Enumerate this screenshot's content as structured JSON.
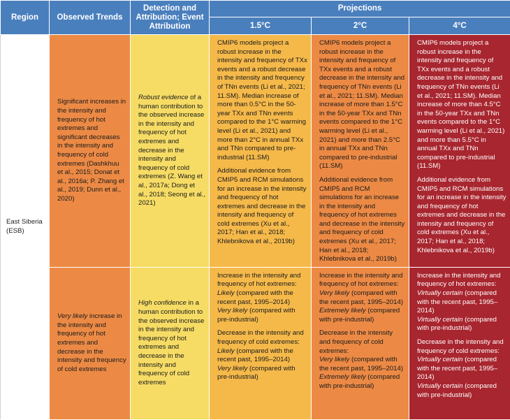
{
  "headers": {
    "region": "Region",
    "observed": "Observed Trends",
    "detection": "Detection and Attribution; Event Attribution",
    "projections": "Projections",
    "p15": "1.5°C",
    "p20": "2°C",
    "p40": "4°C"
  },
  "region": "East Siberia (ESB)",
  "hot_row": {
    "observed": "Significant increases in the intensity and frequency of hot extremes and significant decreases in the intensity and frequency of cold extremes (Dashkhuu et al., 2015; Donat et al., 2016a; P. Zhang et al., 2019; Dunn et al., 2020)",
    "detection_em": "Robust evidence",
    "detection_rest": " of a human contribution to the observed increase in the intensity and frequency of hot extremes and decrease in the intensity and frequency of cold extremes (Z. Wang et al., 2017a; Dong et al., 2018; Seong et al., 2021)",
    "p15_a": "CMIP6 models project a robust increase in the intensity and frequency of TXx events and a robust decrease in the intensity and frequency of TNn events (Li et al., 2021; 11.SM). Median increase of more than 0.5°C in the 50-year TXx and TNn events compared to the 1°C warming level (Li et al., 2021) and more than 2°C in annual TXx and TNn compared to pre-industrial (11.SM)",
    "p15_b": "Additional evidence from CMIP5 and RCM simulations for an increase in the intensity and frequency of hot extremes and decrease in the intensity and frequency of cold extremes (Xu et al., 2017; Han et al., 2018; Khlebnikova et al., 2019b)",
    "p20_a": "CMIP6 models project a robust increase in the intensity and frequency of TXx events and a robust decrease in the intensity and frequency of TNn events (Li et al., 2021; 11.SM). Median increase of more than 1.5°C in the 50-year TXx and TNn events compared to the 1°C warming level (Li et al., 2021) and more than 2.5°C in annual TXx and TNn compared to pre-industrial (11.SM)",
    "p20_b": "Additional evidence from CMIP5 and RCM simulations for an increase in the intensity and frequency of hot extremes and decrease in the intensity and frequency of cold extremes (Xu et al., 2017; Han et al., 2018; Khlebnikova et al., 2019b)",
    "p40_a": "CMIP6 models project a robust increase in the intensity and frequency of TXx events and a robust decrease in the intensity and frequency of TNn events (Li et al., 2021; 11.SM). Median increase of more than 4.5°C in the 50-year TXx and TNn events compared to the 1°C warming level (Li et al., 2021) and more than 5.5°C in annual TXx and TNn compared to pre-industrial (11.SM)",
    "p40_b": "Additional evidence from CMIP5 and RCM simulations for an increase in the intensity and frequency of hot extremes and decrease in the intensity and frequency of cold extremes (Xu et al., 2017; Han et al., 2018; Khlebnikova et al., 2019b)"
  },
  "likely_row": {
    "observed_em": "Very likely",
    "observed_rest": " increase in the intensity and frequency of hot extremes and decrease in the intensity and frequency of cold extremes",
    "detection_em": "High confidence",
    "detection_rest": " in a human contribution to the observed increase in the intensity and frequency of hot extremes and decrease in the intensity and frequency of cold extremes",
    "hot_intro": "Increase in the intensity and frequency of hot extremes:",
    "cold_intro": "Decrease in the intensity and frequency of cold extremes:",
    "p15": {
      "hot_recent_em": "Likely",
      "hot_recent_rest": " (compared with the recent past, 1995–2014)",
      "hot_pre_em": "Very likely",
      "hot_pre_rest": " (compared with pre-industrial)",
      "cold_recent_em": "Likely",
      "cold_recent_rest": " (compared with the recent past, 1995–2014)",
      "cold_pre_em": "Very likely",
      "cold_pre_rest": " (compared with pre-industrial)"
    },
    "p20": {
      "hot_recent_em": "Very likely",
      "hot_recent_rest": " (compared with the recent past, 1995–2014)",
      "hot_pre_em": "Extremely likely",
      "hot_pre_rest": " (compared with pre-industrial)",
      "cold_recent_em": "Very likely",
      "cold_recent_rest": " (compared with the recent past, 1995–2014)",
      "cold_pre_em": "Extremely likely",
      "cold_pre_rest": " (compared with pre-industrial)"
    },
    "p40": {
      "hot_intro": "Increase in the intensity and frequency of hot extremes:",
      "hot_recent_em": "Virtually certain",
      "hot_recent_rest": " (compared with the recent past, 1995–2014)",
      "hot_pre_em": "Virtually certain",
      "hot_pre_rest": " (compared with pre-industrial)",
      "cold_intro": "Decrease in the intensity and frequency of cold extremes: ",
      "cold_recent_em": "Virtually certain",
      "cold_recent_rest": " (compared with the recent past, 1995–2014)",
      "cold_pre_em": "Virtually certain",
      "cold_pre_rest": " (compared with pre-industrial)"
    }
  },
  "colors": {
    "header": "#4a7fbd",
    "observed": "#ec8a45",
    "detection": "#f6dc65",
    "p15": "#f5b94a",
    "p20": "#ec8a45",
    "p40": "#a8262f"
  }
}
